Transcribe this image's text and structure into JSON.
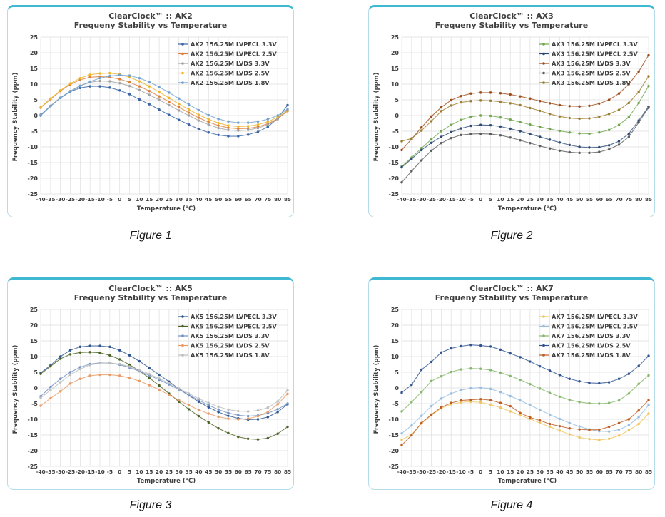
{
  "theme": {
    "panel_border": "#b5dce9",
    "panel_top_border": "#3fb8d2",
    "grid_color": "#dedede",
    "text_color": "#404040"
  },
  "chart_data": [
    {
      "type": "line",
      "title": "ClearClock™ :: AK2",
      "subtitle": "Frequeny Stability vs Temperature",
      "xlabel": "Temperature (°C)",
      "ylabel": "Frequency Stability (ppm)",
      "caption": "Figure 1",
      "x": [
        -40,
        -35,
        -30,
        -25,
        -20,
        -15,
        -10,
        -5,
        0,
        5,
        10,
        15,
        20,
        25,
        30,
        35,
        40,
        45,
        50,
        55,
        60,
        65,
        70,
        75,
        80,
        85
      ],
      "ylim": [
        -25,
        25
      ],
      "ytick_step": 5,
      "grid": true,
      "legend_position": "top-right-inside",
      "series": [
        {
          "name": "AK2 156.25M LVPECL 3.3V",
          "color": "#3A64A5",
          "values": [
            0.0,
            3.0,
            5.6,
            7.6,
            8.8,
            9.3,
            9.3,
            8.9,
            8.0,
            6.8,
            5.1,
            3.6,
            1.9,
            0.2,
            -1.4,
            -2.9,
            -4.3,
            -5.4,
            -6.2,
            -6.6,
            -6.6,
            -6.1,
            -5.2,
            -3.6,
            -0.9,
            3.3
          ]
        },
        {
          "name": "AK2 156.25M LVPECL 2.5V",
          "color": "#DC7E3A",
          "values": [
            2.5,
            5.2,
            7.8,
            9.9,
            11.4,
            12.2,
            12.4,
            12.2,
            11.6,
            10.6,
            9.3,
            7.8,
            6.1,
            4.4,
            2.6,
            0.9,
            -0.7,
            -2.1,
            -3.2,
            -3.9,
            -4.2,
            -4.1,
            -3.6,
            -2.6,
            -1.0,
            1.4
          ]
        },
        {
          "name": "AK2 156.25M LVDS 3.3V",
          "color": "#A2A2A2",
          "values": [
            0.3,
            3.1,
            5.7,
            7.8,
            9.5,
            10.6,
            11.0,
            10.9,
            10.3,
            9.4,
            8.1,
            6.6,
            5.0,
            3.3,
            1.6,
            0.0,
            -1.6,
            -2.9,
            -4.0,
            -4.6,
            -4.8,
            -4.6,
            -4.0,
            -2.9,
            -1.2,
            1.8
          ]
        },
        {
          "name": "AK2 156.25M LVDS 2.5V",
          "color": "#EDB42C",
          "values": [
            2.6,
            5.4,
            8.0,
            10.2,
            11.9,
            13.0,
            13.4,
            13.5,
            13.1,
            12.2,
            10.9,
            9.3,
            7.5,
            5.6,
            3.7,
            1.9,
            0.2,
            -1.2,
            -2.4,
            -3.2,
            -3.5,
            -3.4,
            -2.9,
            -2.0,
            -0.5,
            1.6
          ]
        },
        {
          "name": "AK2 156.25M LVDS 1.8V",
          "color": "#6FA0CF",
          "values": [
            0.2,
            3.0,
            5.6,
            7.7,
            9.4,
            10.8,
            11.9,
            12.6,
            12.9,
            12.7,
            11.9,
            10.7,
            9.1,
            7.3,
            5.4,
            3.5,
            1.7,
            0.1,
            -1.1,
            -1.9,
            -2.3,
            -2.3,
            -1.9,
            -1.2,
            0.0,
            2.0
          ]
        }
      ]
    },
    {
      "type": "line",
      "title": "ClearClock™ :: AX3",
      "subtitle": "Frequeny Stability vs Temperature",
      "xlabel": "Temperature (°C)",
      "ylabel": "Frequency Stability (ppm)",
      "caption": "Figure 2",
      "x": [
        -40,
        -35,
        -30,
        -25,
        -20,
        -15,
        -10,
        -5,
        0,
        5,
        10,
        15,
        20,
        25,
        30,
        35,
        40,
        45,
        50,
        55,
        60,
        65,
        70,
        75,
        80,
        85
      ],
      "ylim": [
        -25,
        25
      ],
      "ytick_step": 5,
      "grid": true,
      "legend_position": "top-right-inside",
      "series": [
        {
          "name": "AX3 156.25M LVPECL 3.3V",
          "color": "#70A64D",
          "values": [
            -16.2,
            -13.4,
            -10.4,
            -7.6,
            -5.0,
            -3.0,
            -1.4,
            -0.4,
            0.0,
            -0.1,
            -0.6,
            -1.3,
            -2.1,
            -2.9,
            -3.6,
            -4.3,
            -4.9,
            -5.4,
            -5.7,
            -5.8,
            -5.4,
            -4.6,
            -3.0,
            -0.5,
            4.0,
            9.4
          ]
        },
        {
          "name": "AX3 156.25M LVPECL 2.5V",
          "color": "#2C4977",
          "values": [
            -16.5,
            -13.8,
            -11.0,
            -8.7,
            -6.8,
            -5.3,
            -4.1,
            -3.3,
            -3.0,
            -3.1,
            -3.5,
            -4.2,
            -5.0,
            -5.9,
            -6.8,
            -7.7,
            -8.6,
            -9.4,
            -10.0,
            -10.2,
            -10.1,
            -9.5,
            -8.2,
            -5.8,
            -1.6,
            2.8
          ]
        },
        {
          "name": "AX3 156.25M LVDS 3.3V",
          "color": "#9D4B19",
          "values": [
            -11.0,
            -7.5,
            -3.8,
            -0.3,
            2.6,
            4.9,
            6.2,
            7.0,
            7.3,
            7.3,
            7.1,
            6.7,
            6.1,
            5.4,
            4.6,
            3.9,
            3.3,
            3.0,
            2.9,
            3.1,
            3.8,
            5.0,
            7.0,
            10.0,
            14.0,
            19.2
          ]
        },
        {
          "name": "AX3 156.25M LVDS 2.5V",
          "color": "#595B5C",
          "values": [
            -21.3,
            -17.7,
            -14.3,
            -11.2,
            -8.8,
            -7.2,
            -6.2,
            -5.9,
            -5.8,
            -5.9,
            -6.3,
            -7.0,
            -7.9,
            -8.8,
            -9.7,
            -10.5,
            -11.2,
            -11.7,
            -11.9,
            -11.9,
            -11.6,
            -10.8,
            -9.3,
            -6.8,
            -2.2,
            2.5
          ]
        },
        {
          "name": "AX3 156.25M LVDS 1.8V",
          "color": "#9A7D2E",
          "values": [
            -8.2,
            -7.3,
            -4.8,
            -1.8,
            1.4,
            3.2,
            4.2,
            4.6,
            4.8,
            4.7,
            4.4,
            3.9,
            3.3,
            2.4,
            1.5,
            0.5,
            -0.3,
            -0.8,
            -1.0,
            -0.9,
            -0.4,
            0.5,
            1.8,
            4.0,
            7.5,
            12.5
          ]
        }
      ]
    },
    {
      "type": "line",
      "title": "ClearClock™ :: AK5",
      "subtitle": "Frequeny Stability vs Temperature",
      "xlabel": "Temperature (°C)",
      "ylabel": "Frequency Stability (ppm)",
      "caption": "Figure 3",
      "x": [
        -40,
        -35,
        -30,
        -25,
        -20,
        -15,
        -10,
        -5,
        0,
        5,
        10,
        15,
        20,
        25,
        30,
        35,
        40,
        45,
        50,
        55,
        60,
        65,
        70,
        75,
        80,
        85
      ],
      "ylim": [
        -25,
        25
      ],
      "ytick_step": 5,
      "grid": true,
      "legend_position": "top-right-inside",
      "series": [
        {
          "name": "AK5 156.25M LVPECL 3.3V",
          "color": "#2D5590",
          "values": [
            4.8,
            7.2,
            10.0,
            12.0,
            13.1,
            13.4,
            13.4,
            13.1,
            12.0,
            10.4,
            8.5,
            6.4,
            4.2,
            2.0,
            -0.3,
            -2.4,
            -4.4,
            -6.2,
            -7.7,
            -8.9,
            -9.7,
            -10.1,
            -10.0,
            -9.3,
            -7.7,
            -5.2
          ]
        },
        {
          "name": "AK5 156.25M LVPECL 2.5V",
          "color": "#4B6325",
          "values": [
            4.5,
            6.9,
            9.3,
            10.7,
            11.3,
            11.4,
            11.2,
            10.4,
            9.1,
            7.4,
            5.4,
            3.2,
            0.8,
            -1.8,
            -4.4,
            -6.8,
            -9.0,
            -11.0,
            -12.9,
            -14.4,
            -15.6,
            -16.2,
            -16.4,
            -16.0,
            -14.6,
            -12.4
          ]
        },
        {
          "name": "AK5 156.25M LVDS 3.3V",
          "color": "#7190C4",
          "values": [
            -2.7,
            0.3,
            2.9,
            5.0,
            6.6,
            7.6,
            8.0,
            7.9,
            7.4,
            6.5,
            5.3,
            4.0,
            2.6,
            1.1,
            -0.5,
            -2.2,
            -3.9,
            -5.5,
            -6.9,
            -8.0,
            -8.7,
            -9.0,
            -8.8,
            -8.1,
            -6.8,
            -5.0
          ]
        },
        {
          "name": "AK5 156.25M LVDS 2.5V",
          "color": "#E79B67",
          "values": [
            -5.7,
            -3.3,
            -1.1,
            1.4,
            2.9,
            3.9,
            4.2,
            4.2,
            3.9,
            3.2,
            2.2,
            0.9,
            -0.6,
            -2.2,
            -3.9,
            -5.5,
            -7.0,
            -8.2,
            -9.2,
            -9.8,
            -10.0,
            -9.8,
            -9.0,
            -7.6,
            -5.2,
            -1.9
          ]
        },
        {
          "name": "AK5 156.25M LVDS 1.8V",
          "color": "#BDBDBD",
          "values": [
            -3.2,
            -0.7,
            1.8,
            4.2,
            6.0,
            7.3,
            7.9,
            8.0,
            7.6,
            6.8,
            5.7,
            4.4,
            3.0,
            1.5,
            -0.2,
            -1.8,
            -3.4,
            -4.8,
            -6.0,
            -6.9,
            -7.4,
            -7.5,
            -7.2,
            -6.3,
            -4.3,
            -0.8
          ]
        }
      ]
    },
    {
      "type": "line",
      "title": "ClearClock™ :: AK7",
      "subtitle": "Frequeny Stability vs Temperature",
      "xlabel": "Temperature (°C)",
      "ylabel": "Frequency Stability (ppm)",
      "caption": "Figure 4",
      "x": [
        -40,
        -35,
        -30,
        -25,
        -20,
        -15,
        -10,
        -5,
        0,
        5,
        10,
        15,
        20,
        25,
        30,
        35,
        40,
        45,
        50,
        55,
        60,
        65,
        70,
        75,
        80,
        85
      ],
      "ylim": [
        -25,
        25
      ],
      "ytick_step": 5,
      "grid": true,
      "legend_position": "top-right-inside",
      "series": [
        {
          "name": "AK7 156.25M LVPECL 3.3V",
          "color": "#EFC55B",
          "values": [
            -16.5,
            -14.9,
            -11.3,
            -8.7,
            -6.5,
            -5.2,
            -4.6,
            -4.4,
            -4.6,
            -5.3,
            -6.3,
            -7.5,
            -8.7,
            -9.9,
            -11.2,
            -12.4,
            -13.6,
            -14.8,
            -15.8,
            -16.3,
            -16.6,
            -16.2,
            -15.2,
            -13.5,
            -11.5,
            -8.2
          ]
        },
        {
          "name": "AK7 156.25M LVPECL 2.5V",
          "color": "#97BEE0",
          "values": [
            -14.5,
            -12.0,
            -8.9,
            -5.8,
            -3.4,
            -1.8,
            -0.7,
            -0.1,
            0.1,
            -0.3,
            -1.3,
            -2.6,
            -4.0,
            -5.5,
            -7.0,
            -8.5,
            -9.9,
            -11.2,
            -12.3,
            -13.2,
            -13.8,
            -13.9,
            -13.3,
            -11.9,
            -9.3,
            -5.5
          ]
        },
        {
          "name": "AK7 156.25M LVDS 3.3V",
          "color": "#86B86B",
          "values": [
            -7.5,
            -4.5,
            -1.3,
            2.2,
            3.7,
            5.1,
            5.9,
            6.2,
            6.1,
            5.7,
            4.9,
            3.8,
            2.6,
            1.2,
            -0.2,
            -1.6,
            -2.8,
            -3.8,
            -4.5,
            -4.9,
            -5.0,
            -4.8,
            -4.0,
            -1.8,
            1.3,
            4.0
          ]
        },
        {
          "name": "AK7 156.25M LVDS 2.5V",
          "color": "#2F5391",
          "values": [
            -1.5,
            1.0,
            5.8,
            8.3,
            11.3,
            12.6,
            13.3,
            13.7,
            13.5,
            13.2,
            12.2,
            11.0,
            9.8,
            8.4,
            6.9,
            5.5,
            4.1,
            2.9,
            2.1,
            1.6,
            1.5,
            1.8,
            2.9,
            4.5,
            7.0,
            10.2
          ]
        },
        {
          "name": "AK7 156.25M LVDS 1.8V",
          "color": "#BE5D21",
          "values": [
            -18.2,
            -15.1,
            -11.2,
            -8.5,
            -6.2,
            -4.8,
            -4.0,
            -3.8,
            -3.6,
            -3.9,
            -4.8,
            -5.8,
            -8.0,
            -9.4,
            -10.4,
            -11.5,
            -12.2,
            -12.9,
            -13.2,
            -13.4,
            -13.3,
            -12.4,
            -11.2,
            -10.0,
            -7.2,
            -3.9
          ]
        }
      ]
    }
  ]
}
